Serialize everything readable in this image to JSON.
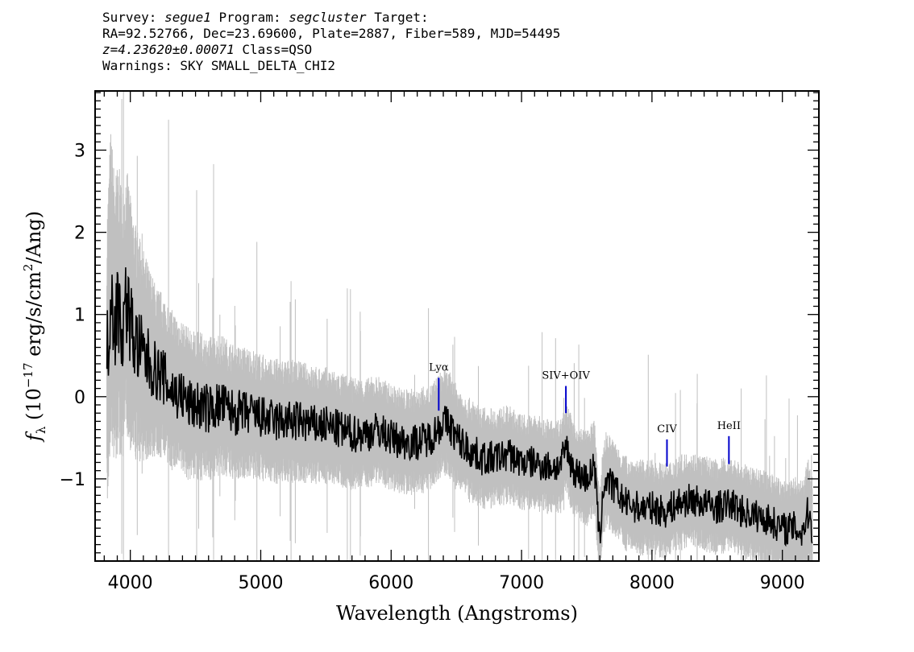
{
  "header": {
    "survey_label": "Survey:",
    "survey": "segue1",
    "program_label": "Program:",
    "program": "segcluster",
    "target_label": "Target:",
    "line2": "RA=92.52766, Dec=23.69600, Plate=2887, Fiber=589, MJD=54495",
    "redshift": "z=4.23620±0.00071",
    "class": "Class=QSO",
    "warnings": "Warnings: SKY SMALL_DELTA_CHI2"
  },
  "colors": {
    "flux": "#000000",
    "error": "#c0c0c0",
    "line_marker": "#0000cc",
    "frame": "#000000"
  },
  "chart_data": {
    "type": "line",
    "xlabel": "Wavelength (Angstroms)",
    "ylabel_prefix": "f",
    "ylabel_sub": "λ",
    "ylabel_mid": " (10",
    "ylabel_exp": "−17",
    "ylabel_units": " erg/s/cm",
    "ylabel_sq": "2",
    "ylabel_end": "/Ang)",
    "xlim": [
      3730,
      9280
    ],
    "ylim": [
      -2.0,
      3.72
    ],
    "x_ticks": [
      4000,
      5000,
      6000,
      7000,
      8000,
      9000
    ],
    "x_tick_labels": [
      "4000",
      "5000",
      "6000",
      "7000",
      "8000",
      "9000"
    ],
    "y_ticks": [
      -1,
      0,
      1,
      2,
      3
    ],
    "y_tick_labels": [
      "−1",
      "0",
      "1",
      "2",
      "3"
    ],
    "grid": false,
    "series": [
      {
        "role": "flux",
        "x": [
          3820,
          3850,
          3880,
          3910,
          3940,
          3970,
          4000,
          4030,
          4060,
          4100,
          4150,
          4200,
          4250,
          4300,
          4350,
          4400,
          4450,
          4500,
          4600,
          4700,
          4800,
          4900,
          5000,
          5100,
          5200,
          5300,
          5400,
          5500,
          5600,
          5700,
          5800,
          5900,
          6000,
          6100,
          6200,
          6300,
          6350,
          6400,
          6450,
          6500,
          6600,
          6700,
          6800,
          6900,
          7000,
          7100,
          7200,
          7300,
          7340,
          7400,
          7500,
          7560,
          7600,
          7620,
          7650,
          7700,
          7800,
          7900,
          8000,
          8100,
          8200,
          8300,
          8400,
          8500,
          8600,
          8700,
          8800,
          8900,
          9000,
          9100,
          9150,
          9200,
          9230
        ],
        "y": [
          0.3,
          1.4,
          0.9,
          1.1,
          0.8,
          1.2,
          0.9,
          0.7,
          0.6,
          0.5,
          0.4,
          0.3,
          0.25,
          0.1,
          0.05,
          0.0,
          -0.1,
          -0.1,
          -0.15,
          -0.1,
          -0.2,
          -0.2,
          -0.25,
          -0.3,
          -0.3,
          -0.3,
          -0.35,
          -0.35,
          -0.4,
          -0.45,
          -0.45,
          -0.4,
          -0.5,
          -0.55,
          -0.55,
          -0.5,
          -0.4,
          -0.3,
          -0.35,
          -0.5,
          -0.65,
          -0.75,
          -0.75,
          -0.7,
          -0.8,
          -0.8,
          -0.85,
          -0.85,
          -0.6,
          -0.9,
          -1.0,
          -0.85,
          -1.8,
          -1.2,
          -1.0,
          -1.1,
          -1.3,
          -1.35,
          -1.35,
          -1.4,
          -1.3,
          -1.25,
          -1.3,
          -1.35,
          -1.3,
          -1.4,
          -1.45,
          -1.5,
          -1.6,
          -1.6,
          -1.65,
          -1.4,
          -1.6
        ]
      },
      {
        "role": "error",
        "x": [
          3820,
          4000,
          4200,
          4500,
          5000,
          5500,
          6000,
          6500,
          7000,
          7500,
          8000,
          8500,
          9000,
          9230
        ],
        "y": [
          1.5,
          1.2,
          0.8,
          0.7,
          0.6,
          0.55,
          0.5,
          0.5,
          0.45,
          0.45,
          0.45,
          0.45,
          0.45,
          0.5
        ]
      }
    ],
    "annotations": [
      {
        "label": "Lyα",
        "x": 6365,
        "y_top": -0.17,
        "y_bottom": 0.23
      },
      {
        "label": "SIV+OIV",
        "x": 7340,
        "y_top": -0.2,
        "y_bottom": 0.13
      },
      {
        "label": "CIV",
        "x": 8115,
        "y_top": -0.85,
        "y_bottom": -0.52
      },
      {
        "label": "HeII",
        "x": 8590,
        "y_top": -0.82,
        "y_bottom": -0.48
      }
    ]
  }
}
